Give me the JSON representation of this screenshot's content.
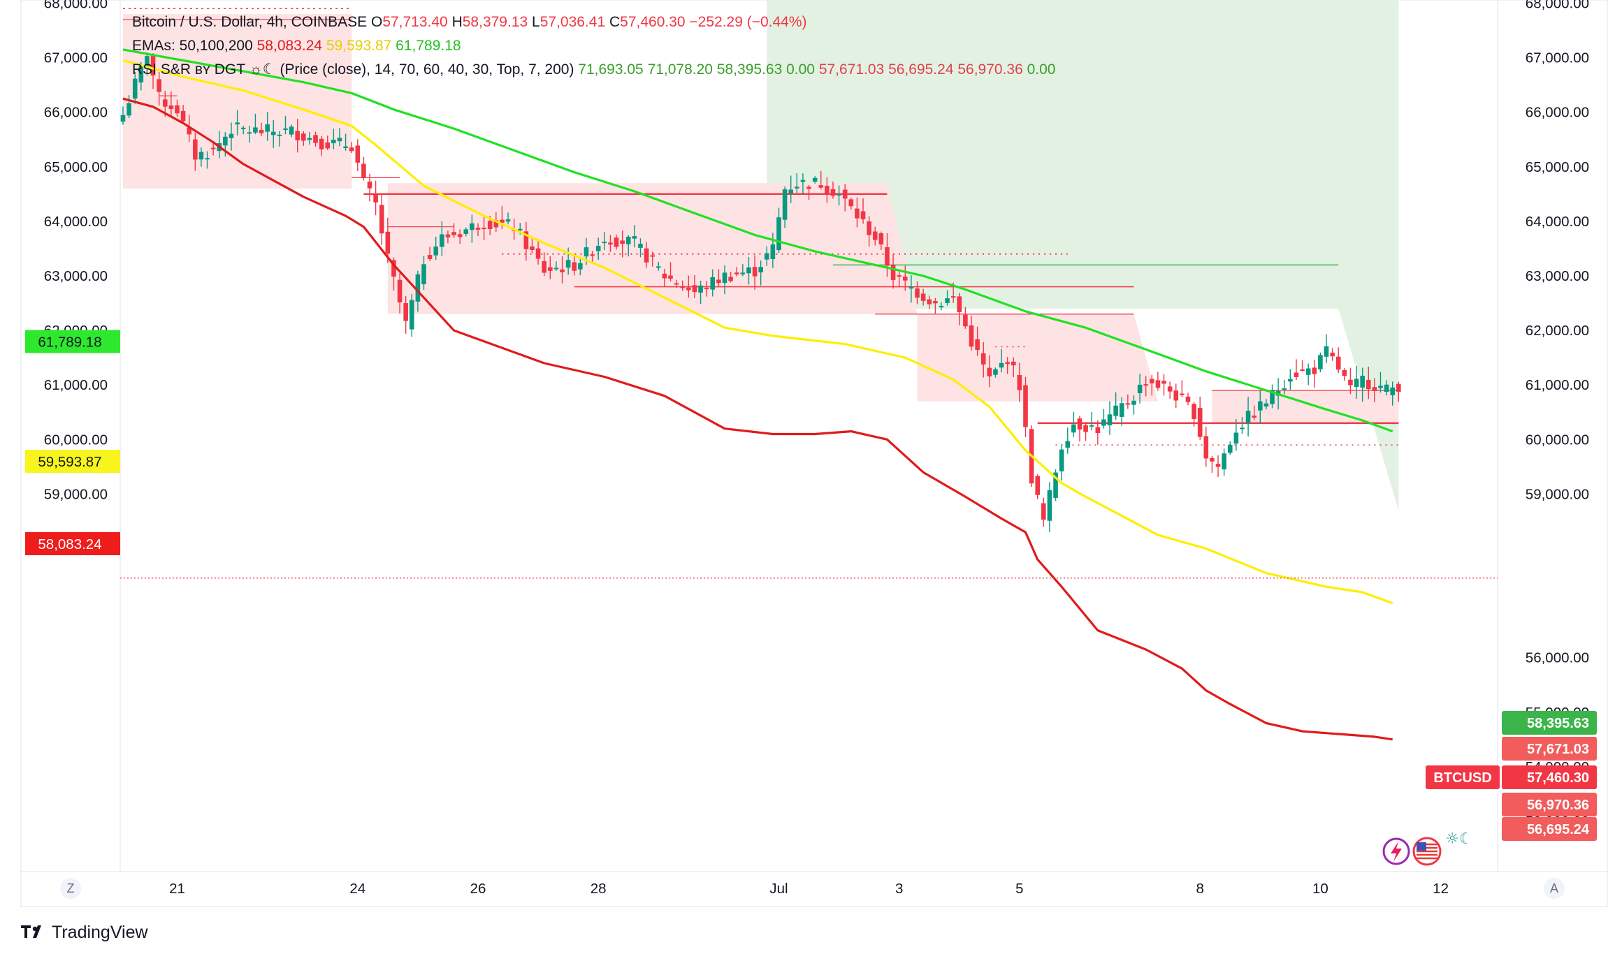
{
  "legend": {
    "symbol": "Bitcoin / U.S. Dollar, 4h, COINBASE",
    "ohlc": [
      {
        "k": "O",
        "v": "57,713.40"
      },
      {
        "k": "H",
        "v": "58,379.13"
      },
      {
        "k": "L",
        "v": "57,036.41"
      },
      {
        "k": "C",
        "v": "57,460.30"
      }
    ],
    "change": "−252.29 (−0.44%)",
    "ema_label": "EMAs: 50,100,200",
    "ema_values": [
      {
        "v": "58,083.24",
        "color": "#e01b1b"
      },
      {
        "v": "59,593.87",
        "color": "#e6cf00"
      },
      {
        "v": "61,789.18",
        "color": "#1fc11f"
      }
    ],
    "rsi_label": "RSI S&R ʙʏ DGT ☼☾ (Price (close), 14, 70, 60, 40, 30, Top, 7, 200)",
    "rsi_values": [
      {
        "v": "71,693.05",
        "color": "#3a9d2b"
      },
      {
        "v": "71,078.20",
        "color": "#3a9d2b"
      },
      {
        "v": "58,395.63",
        "color": "#3a9d2b"
      },
      {
        "v": "0.00",
        "color": "#3a9d2b"
      },
      {
        "v": "57,671.03",
        "color": "#e0414a"
      },
      {
        "v": "56,695.24",
        "color": "#e0414a"
      },
      {
        "v": "56,970.36",
        "color": "#e0414a"
      },
      {
        "v": "0.00",
        "color": "#3a9d2b"
      }
    ]
  },
  "left_scale_badges": [
    {
      "v": "61,789.18",
      "bg": "#2ee82e",
      "fg": "#131722",
      "price": 61789.18
    },
    {
      "v": "59,593.87",
      "bg": "#f7f51c",
      "fg": "#131722",
      "price": 59593.87
    },
    {
      "v": "58,083.24",
      "bg": "#ef1c1c",
      "fg": "#ffffff",
      "price": 58083.24
    }
  ],
  "right_scale_badges": [
    {
      "v": "58,395.63",
      "bg": "#3bb44a",
      "fg": "#ffffff",
      "price": 58395.63
    },
    {
      "v": "57,671.03",
      "bg": "#f25c5c",
      "fg": "#ffffff",
      "price": 57671.03
    },
    {
      "v": "57,460.30",
      "bg": "#f23645",
      "fg": "#ffffff",
      "price": 57460.3,
      "label": "BTCUSD"
    },
    {
      "v": "56,970.36",
      "bg": "#f25c5c",
      "fg": "#ffffff",
      "price": 56970.36
    },
    {
      "v": "56,695.24",
      "bg": "#f25c5c",
      "fg": "#ffffff",
      "price": 56695.24
    }
  ],
  "colors": {
    "up": "#089981",
    "down": "#f23645",
    "ema50": "#e01b1b",
    "ema100": "#ffee00",
    "ema200": "#22e022",
    "red_zone": "#fde3e3",
    "green_zone": "#e3f1e3"
  },
  "footer": {
    "brand": "TradingView",
    "z_button": "Z",
    "a_button": "A"
  },
  "icons": [
    "tradingview-logo-icon",
    "lightning-icon",
    "us-flag-icon",
    "sun-moon-icon"
  ],
  "chart_data": {
    "type": "candlestick",
    "title": "Bitcoin / U.S. Dollar, 4h, COINBASE",
    "left_axis": {
      "ylim": [
        52000,
        68200
      ],
      "ticks": [
        59000,
        60000,
        61000,
        62000,
        63000,
        64000,
        65000,
        66000,
        67000,
        68000
      ],
      "tick_labels": [
        "59,000.00",
        "60,000.00",
        "61,000.00",
        "62,000.00",
        "63,000.00",
        "64,000.00",
        "65,000.00",
        "66,000.00",
        "67,000.00",
        "68,000.00"
      ]
    },
    "right_axis": {
      "ylim": [
        52000,
        68200
      ],
      "ticks": [
        53000,
        54000,
        55000,
        56000,
        57000,
        58000,
        59000,
        60000,
        61000,
        62000,
        63000,
        64000,
        65000,
        66000,
        67000,
        68000
      ],
      "tick_labels": [
        "53,000.00",
        "54,000.00",
        "55,000.00",
        "56,000.00",
        "",
        "",
        "59,000.00",
        "60,000.00",
        "61,000.00",
        "62,000.00",
        "63,000.00",
        "64,000.00",
        "65,000.00",
        "66,000.00",
        "67,000.00",
        "68,000.00"
      ]
    },
    "x_axis": {
      "range": [
        0,
        218
      ],
      "ticks": [
        {
          "i": 9,
          "label": "21"
        },
        {
          "i": 39,
          "label": "24"
        },
        {
          "i": 59,
          "label": "26"
        },
        {
          "i": 79,
          "label": "28"
        },
        {
          "i": 109,
          "label": "Jul"
        },
        {
          "i": 129,
          "label": "3"
        },
        {
          "i": 149,
          "label": "5"
        },
        {
          "i": 179,
          "label": "8"
        },
        {
          "i": 199,
          "label": "10"
        },
        {
          "i": 219,
          "label": "12"
        }
      ]
    },
    "anchors": [
      [
        0,
        65950
      ],
      [
        3,
        66800
      ],
      [
        4,
        67100
      ],
      [
        6,
        66250
      ],
      [
        9,
        66050
      ],
      [
        12,
        65200
      ],
      [
        15,
        65300
      ],
      [
        18,
        65700
      ],
      [
        23,
        65650
      ],
      [
        28,
        65650
      ],
      [
        33,
        65450
      ],
      [
        38,
        65400
      ],
      [
        40,
        64700
      ],
      [
        42,
        64300
      ],
      [
        44,
        63300
      ],
      [
        47,
        62100
      ],
      [
        50,
        63300
      ],
      [
        53,
        63700
      ],
      [
        56,
        63800
      ],
      [
        60,
        64000
      ],
      [
        65,
        63900
      ],
      [
        70,
        63100
      ],
      [
        75,
        63200
      ],
      [
        80,
        63700
      ],
      [
        85,
        63600
      ],
      [
        90,
        63000
      ],
      [
        95,
        62700
      ],
      [
        100,
        63000
      ],
      [
        105,
        63100
      ],
      [
        108,
        63500
      ],
      [
        110,
        64600
      ],
      [
        112,
        64700
      ],
      [
        116,
        64700
      ],
      [
        119,
        64500
      ],
      [
        122,
        64100
      ],
      [
        125,
        63700
      ],
      [
        128,
        63000
      ],
      [
        132,
        62700
      ],
      [
        135,
        62500
      ],
      [
        138,
        62600
      ],
      [
        141,
        61800
      ],
      [
        144,
        61100
      ],
      [
        147,
        61500
      ],
      [
        149,
        61000
      ],
      [
        151,
        59300
      ],
      [
        153,
        58500
      ],
      [
        156,
        59900
      ],
      [
        158,
        60300
      ],
      [
        162,
        60200
      ],
      [
        165,
        60500
      ],
      [
        168,
        60800
      ],
      [
        170,
        61100
      ],
      [
        174,
        60900
      ],
      [
        178,
        60500
      ],
      [
        180,
        59700
      ],
      [
        182,
        59500
      ],
      [
        185,
        60200
      ],
      [
        188,
        60500
      ],
      [
        191,
        60800
      ],
      [
        194,
        61200
      ],
      [
        198,
        61300
      ],
      [
        200,
        61600
      ],
      [
        202,
        61300
      ],
      [
        204,
        60900
      ],
      [
        206,
        61100
      ],
      [
        208,
        61000
      ],
      [
        210,
        60900
      ],
      [
        212,
        61000
      ]
    ],
    "series": [
      {
        "name": "EMA 50",
        "points": [
          [
            0,
            66250
          ],
          [
            5,
            66100
          ],
          [
            10,
            65800
          ],
          [
            15,
            65450
          ],
          [
            20,
            65050
          ],
          [
            30,
            64450
          ],
          [
            37,
            64100
          ],
          [
            40,
            63900
          ],
          [
            45,
            63200
          ],
          [
            50,
            62600
          ],
          [
            55,
            62000
          ],
          [
            60,
            61800
          ],
          [
            70,
            61400
          ],
          [
            80,
            61150
          ],
          [
            90,
            60800
          ],
          [
            100,
            60200
          ],
          [
            108,
            60100
          ],
          [
            115,
            60100
          ],
          [
            121,
            60150
          ],
          [
            127,
            60000
          ],
          [
            133,
            59400
          ],
          [
            140,
            58950
          ],
          [
            146,
            58550
          ],
          [
            150,
            58300
          ],
          [
            152,
            57800
          ],
          [
            156,
            57300
          ],
          [
            162,
            56500
          ],
          [
            170,
            56150
          ],
          [
            176,
            55800
          ],
          [
            180,
            55400
          ],
          [
            184,
            55150
          ],
          [
            190,
            54800
          ],
          [
            196,
            54650
          ],
          [
            202,
            54600
          ],
          [
            208,
            54550
          ],
          [
            211,
            54500
          ]
        ]
      },
      {
        "name": "EMA 100",
        "points": [
          [
            0,
            66950
          ],
          [
            10,
            66650
          ],
          [
            20,
            66400
          ],
          [
            30,
            66050
          ],
          [
            38,
            65750
          ],
          [
            42,
            65400
          ],
          [
            50,
            64650
          ],
          [
            60,
            64100
          ],
          [
            70,
            63600
          ],
          [
            80,
            63150
          ],
          [
            90,
            62600
          ],
          [
            100,
            62050
          ],
          [
            108,
            61900
          ],
          [
            120,
            61750
          ],
          [
            130,
            61500
          ],
          [
            138,
            61100
          ],
          [
            144,
            60600
          ],
          [
            150,
            59800
          ],
          [
            156,
            59200
          ],
          [
            160,
            58950
          ],
          [
            166,
            58600
          ],
          [
            172,
            58250
          ],
          [
            180,
            58000
          ],
          [
            190,
            57550
          ],
          [
            200,
            57300
          ],
          [
            206,
            57200
          ],
          [
            211,
            57000
          ]
        ]
      },
      {
        "name": "EMA 200",
        "points": [
          [
            0,
            67150
          ],
          [
            10,
            66950
          ],
          [
            20,
            66750
          ],
          [
            30,
            66550
          ],
          [
            38,
            66350
          ],
          [
            45,
            66050
          ],
          [
            55,
            65700
          ],
          [
            65,
            65300
          ],
          [
            75,
            64900
          ],
          [
            85,
            64550
          ],
          [
            95,
            64150
          ],
          [
            105,
            63750
          ],
          [
            115,
            63450
          ],
          [
            125,
            63200
          ],
          [
            133,
            63000
          ],
          [
            140,
            62750
          ],
          [
            150,
            62350
          ],
          [
            160,
            62050
          ],
          [
            170,
            61650
          ],
          [
            180,
            61250
          ],
          [
            190,
            60900
          ],
          [
            200,
            60550
          ],
          [
            206,
            60350
          ],
          [
            211,
            60150
          ]
        ]
      }
    ]
  }
}
